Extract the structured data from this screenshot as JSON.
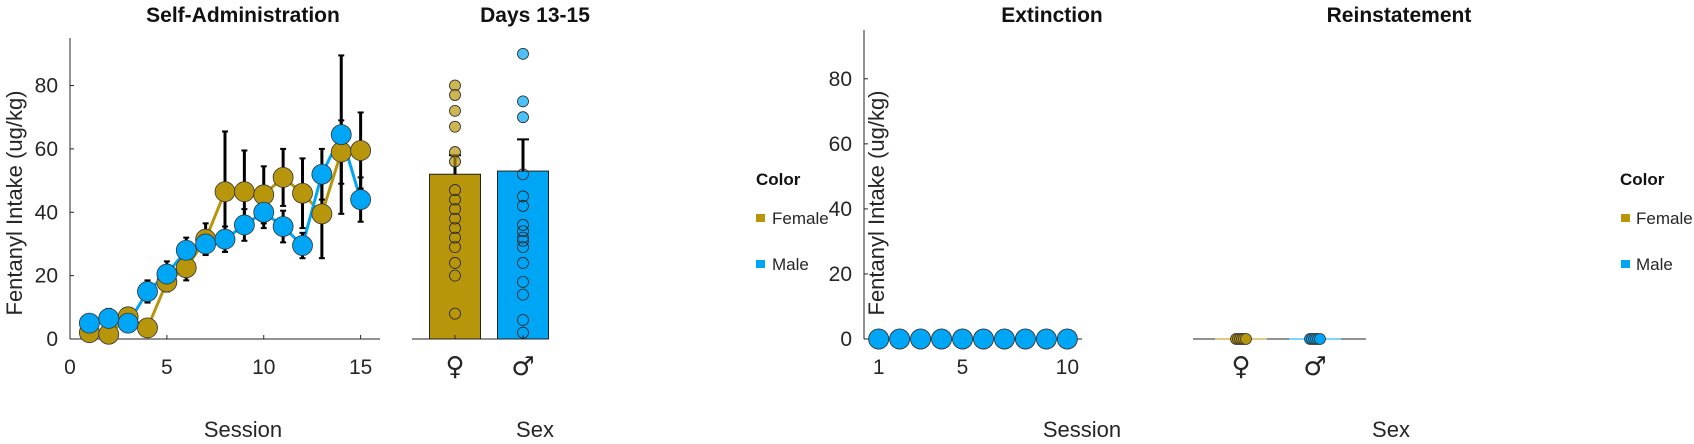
{
  "colors": {
    "female": "#B8960C",
    "male": "#00A6F6",
    "error_bar": "#000000",
    "axis": "#262626"
  },
  "chart_data": [
    {
      "type": "line",
      "title": "Self-Administration",
      "xlabel": "Session",
      "ylabel": "Fentanyl Intake (ug/kg)",
      "xlim": [
        0,
        16
      ],
      "ylim": [
        0,
        95
      ],
      "xticks": [
        0,
        5,
        10,
        15
      ],
      "yticks": [
        0,
        20,
        40,
        60,
        80
      ],
      "x": [
        1,
        2,
        3,
        4,
        5,
        6,
        7,
        8,
        9,
        10,
        11,
        12,
        13,
        14,
        15
      ],
      "series": [
        {
          "name": "Female",
          "values": [
            2,
            1.5,
            7,
            3.5,
            18,
            22.5,
            31.5,
            46.5,
            46.5,
            45.5,
            51,
            46,
            39.5,
            59,
            59.5
          ],
          "errors": [
            1,
            2,
            2,
            1,
            3,
            4,
            5,
            19,
            13,
            9,
            9,
            11,
            14,
            10,
            12
          ]
        },
        {
          "name": "Male",
          "values": [
            5,
            6.5,
            5,
            15,
            20.5,
            28,
            30,
            31.5,
            36,
            40,
            35.5,
            29.5,
            52,
            64.5,
            44
          ],
          "errors": [
            1.5,
            3,
            2.5,
            3.5,
            4,
            4,
            3,
            4,
            5,
            5,
            5,
            4,
            8,
            25,
            7
          ]
        }
      ]
    },
    {
      "type": "bar",
      "title": "Days 13-15",
      "xlabel": "Sex",
      "ylim": [
        0,
        95
      ],
      "categories": [
        "♀",
        "♂"
      ],
      "series": [
        {
          "name": "Female",
          "value": 52,
          "error": 6,
          "points": [
            80,
            77,
            72,
            67,
            59,
            56,
            47,
            44,
            41,
            38,
            35,
            32,
            29,
            24,
            20,
            8
          ]
        },
        {
          "name": "Male",
          "value": 53,
          "error": 10,
          "points": [
            90,
            75,
            70,
            52,
            45,
            42,
            36,
            34,
            32,
            31,
            29,
            24,
            18,
            14,
            6,
            2
          ]
        }
      ]
    },
    {
      "type": "line",
      "title": "Extinction",
      "xlabel": "Session",
      "ylabel": "Fentanyl Intake (ug/kg)",
      "xlim": [
        0.3,
        10.7
      ],
      "ylim": [
        0,
        95
      ],
      "xticks": [
        1,
        5,
        10
      ],
      "yticks": [
        0,
        20,
        40,
        60,
        80
      ],
      "x": [
        1,
        2,
        3,
        4,
        5,
        6,
        7,
        8,
        9,
        10
      ],
      "series": [
        {
          "name": "Female",
          "values": [
            0,
            0,
            0,
            0,
            0,
            0,
            0,
            0,
            0,
            0
          ]
        },
        {
          "name": "Male",
          "values": [
            0,
            0,
            0,
            0,
            0,
            0,
            0,
            0,
            0,
            0
          ]
        }
      ]
    },
    {
      "type": "bar",
      "title": "Reinstatement",
      "xlabel": "Sex",
      "ylim": [
        0,
        95
      ],
      "categories": [
        "♀",
        "♂"
      ],
      "series": [
        {
          "name": "Female",
          "value": 0,
          "points": [
            0,
            0,
            0,
            0,
            0,
            0
          ]
        },
        {
          "name": "Male",
          "value": 0,
          "points": [
            0,
            0,
            0,
            0,
            0,
            0
          ]
        }
      ]
    }
  ],
  "legend": {
    "title": "Color",
    "items": [
      "Female",
      "Male"
    ]
  }
}
